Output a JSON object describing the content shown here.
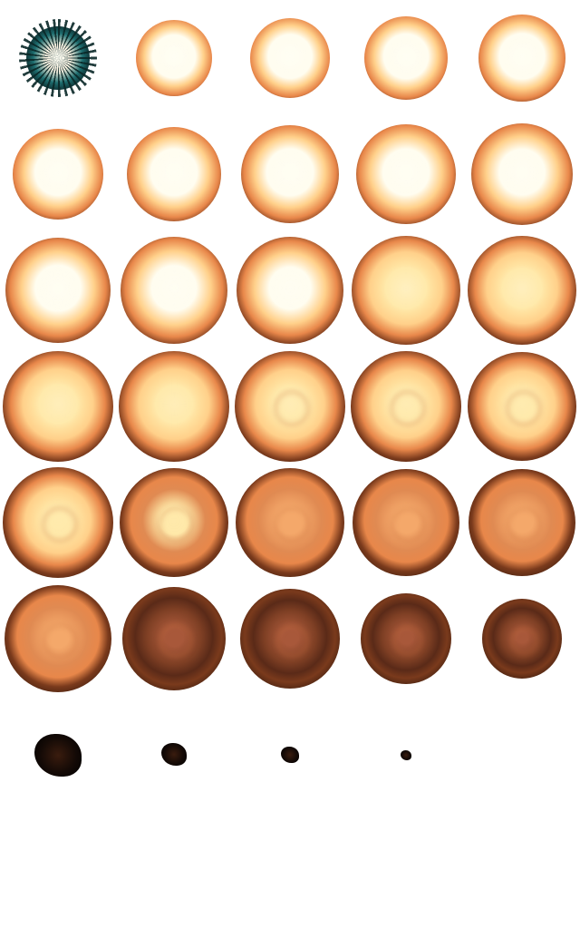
{
  "sprite_sheet": {
    "asset": "explosion-animation",
    "frame_count": 34,
    "columns": 5,
    "colors": {
      "background": "#ffffff",
      "rim": "#140a06",
      "core_hot": "#fffdf0",
      "core_warm": "#ffd08a",
      "mid_orange": "#e8874a",
      "deep_orange": "#7a3a1c",
      "spark_teal": "#1e6e70"
    }
  }
}
